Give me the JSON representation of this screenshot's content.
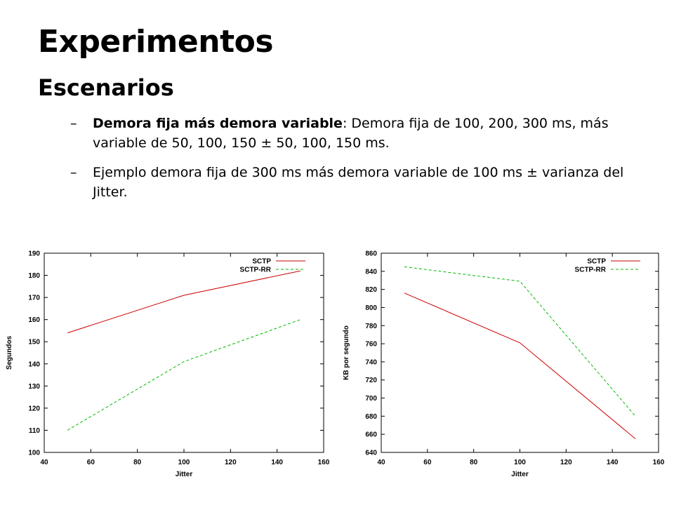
{
  "slide": {
    "title": "Experimentos",
    "subtitle": "Escenarios",
    "bullets": [
      {
        "dash": "–",
        "bold": "Demora fija más demora variable",
        "text": ": Demora fija de 100, 200, 300 ms, más variable de 50, 100, 150 ± 50, 100, 150 ms."
      },
      {
        "dash": "–",
        "bold": "",
        "text": "Ejemplo demora fija de 300 ms más demora variable de 100 ms ± varianza del Jitter."
      }
    ]
  },
  "chart_data": [
    {
      "type": "line",
      "xlabel": "Jitter",
      "ylabel": "Segundos",
      "xlim": [
        40,
        160
      ],
      "ylim": [
        100,
        190
      ],
      "xticks": [
        40,
        60,
        80,
        100,
        120,
        140,
        160
      ],
      "yticks": [
        100,
        110,
        120,
        130,
        140,
        150,
        160,
        170,
        180,
        190
      ],
      "legend_position": "top-right",
      "grid": false,
      "series": [
        {
          "name": "SCTP",
          "color": "#cc0000",
          "dash": "",
          "x": [
            50,
            100,
            150
          ],
          "y": [
            154,
            171,
            182
          ]
        },
        {
          "name": "SCTP-RR",
          "color": "#00bb00",
          "dash": "4,3",
          "x": [
            50,
            100,
            150
          ],
          "y": [
            110,
            141,
            160
          ]
        }
      ]
    },
    {
      "type": "line",
      "xlabel": "Jitter",
      "ylabel": "KB por segundo",
      "xlim": [
        40,
        160
      ],
      "ylim": [
        640,
        860
      ],
      "xticks": [
        40,
        60,
        80,
        100,
        120,
        140,
        160
      ],
      "yticks": [
        640,
        660,
        680,
        700,
        720,
        740,
        760,
        780,
        800,
        820,
        840,
        860
      ],
      "legend_position": "top-right",
      "grid": false,
      "series": [
        {
          "name": "SCTP",
          "color": "#cc0000",
          "dash": "",
          "x": [
            50,
            100,
            150
          ],
          "y": [
            816,
            761,
            655
          ]
        },
        {
          "name": "SCTP-RR",
          "color": "#00bb00",
          "dash": "4,3",
          "x": [
            50,
            100,
            150
          ],
          "y": [
            845,
            829,
            680
          ]
        }
      ]
    }
  ]
}
